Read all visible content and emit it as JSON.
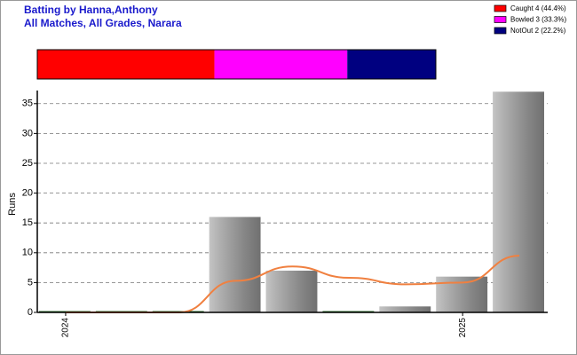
{
  "chart_data": [
    {
      "type": "share",
      "title": "Batting by Hanna,Anthony",
      "subtitle": "All Matches, All Grades, Narara",
      "legend": "top-right",
      "series": [
        {
          "name": "Caught 4 (44.4%)",
          "color": "#ff0000",
          "values": [
            4
          ]
        },
        {
          "name": "Bowled 3 (33.3%)",
          "color": "#ff00ff",
          "values": [
            3
          ]
        },
        {
          "name": "NotOut 2 (22.2%)",
          "color": "#000080",
          "values": [
            2
          ]
        }
      ]
    },
    {
      "type": "bar",
      "ylabel": "Runs",
      "categories": [
        "2024",
        null,
        null,
        null,
        null,
        null,
        null,
        "2025",
        null
      ],
      "values": [
        0,
        0,
        0,
        16,
        7,
        0,
        1,
        6,
        37
      ],
      "trend": {
        "color": "#f08040",
        "values": [
          0,
          0,
          0,
          5.3,
          7.7,
          5.8,
          4.7,
          5,
          9.5
        ]
      },
      "ylim": [
        0,
        37.2
      ],
      "yticks": [
        0,
        5,
        10,
        15,
        20,
        25,
        30,
        35
      ],
      "grid": true
    }
  ]
}
